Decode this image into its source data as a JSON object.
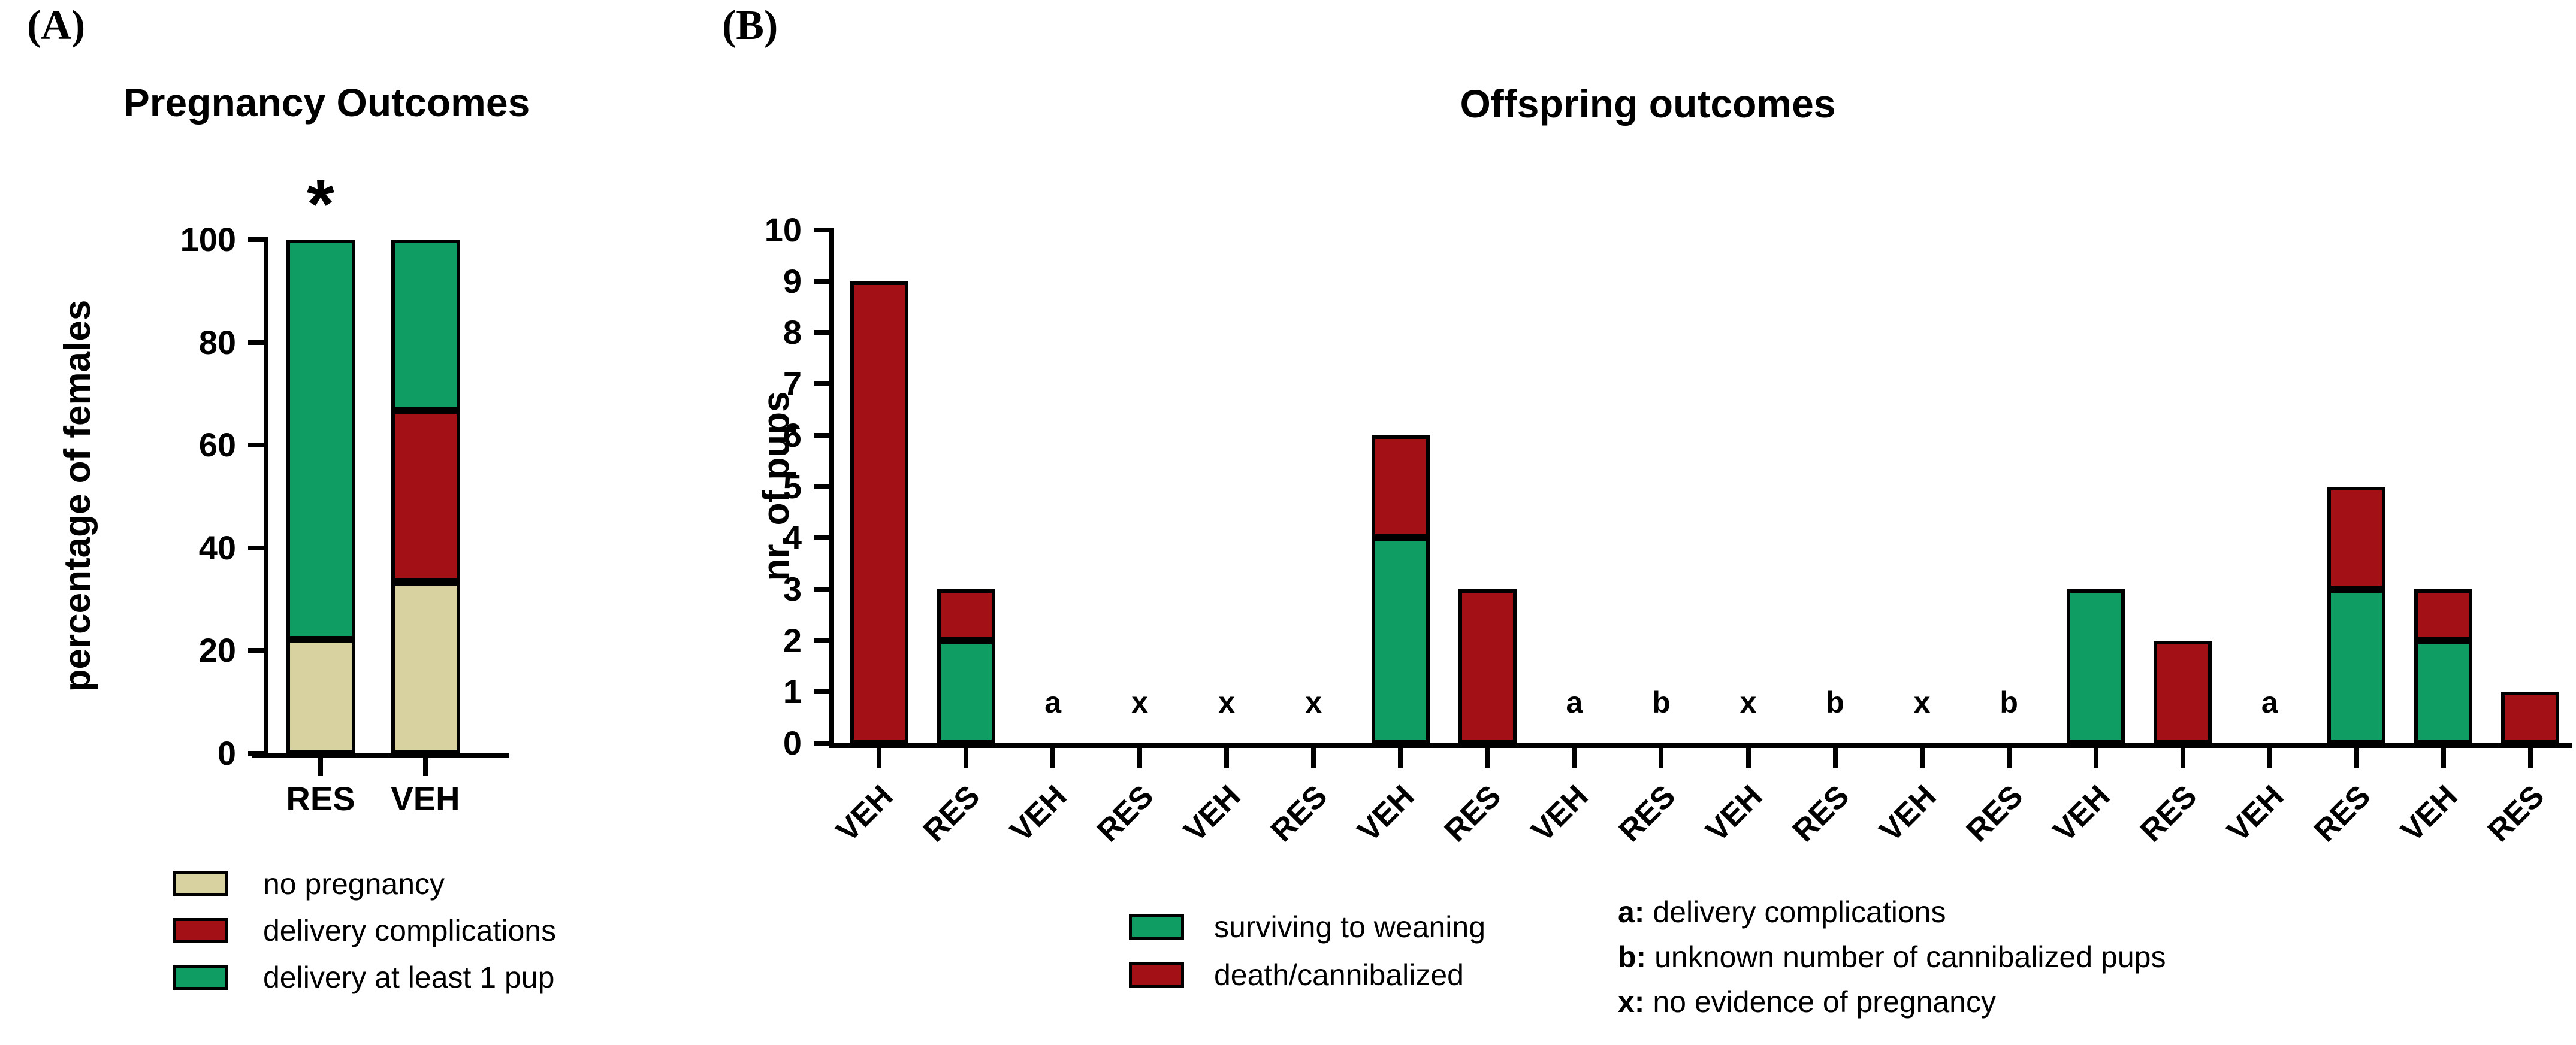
{
  "background": "#ffffff",
  "panels": {
    "a_tag": "(A)",
    "b_tag": "(B)"
  },
  "colors": {
    "no_pregnancy_tan": "#d8d2a0",
    "complication_red": "#a31016",
    "delivery_green": "#0f9d64",
    "axis_black": "#000000"
  },
  "chart_data": [
    {
      "type": "bar",
      "stacked": true,
      "title": "Pregnancy Outcomes",
      "xlabel": "",
      "ylabel": "percentage of females",
      "categories": [
        "RES",
        "VEH"
      ],
      "series": [
        {
          "name": "no pregnancy",
          "color": "#d8d2a0",
          "values": [
            22.2,
            33.3
          ]
        },
        {
          "name": "delivery complications",
          "color": "#a31016",
          "values": [
            0,
            33.4
          ]
        },
        {
          "name": "delivery at least 1 pup",
          "color": "#0f9d64",
          "values": [
            77.8,
            33.3
          ]
        }
      ],
      "ylim": [
        0,
        100
      ],
      "yticks": [
        0,
        20,
        40,
        60,
        80,
        100
      ],
      "grid": false,
      "legend_position": "bottom-left",
      "annotations": [
        {
          "text": "*",
          "category": "RES",
          "meaning": "significant"
        }
      ]
    },
    {
      "type": "bar",
      "stacked": true,
      "title": "Offspring outcomes",
      "xlabel": "",
      "ylabel": "nr. of pups",
      "categories": [
        "VEH",
        "RES",
        "VEH",
        "RES",
        "VEH",
        "RES",
        "VEH",
        "RES",
        "VEH",
        "RES",
        "VEH",
        "RES",
        "VEH",
        "RES",
        "VEH",
        "RES",
        "VEH",
        "RES",
        "VEH",
        "RES"
      ],
      "series": [
        {
          "name": "surviving to weaning",
          "color": "#0f9d64",
          "values": [
            0,
            2,
            0,
            0,
            0,
            0,
            4,
            0,
            0,
            0,
            0,
            0,
            0,
            0,
            3,
            0,
            0,
            3,
            2,
            0
          ]
        },
        {
          "name": "death/cannibalized",
          "color": "#a31016",
          "values": [
            9,
            1,
            0,
            0,
            0,
            0,
            2,
            3,
            0,
            0,
            0,
            0,
            0,
            0,
            0,
            2,
            0,
            2,
            1,
            1
          ]
        }
      ],
      "ylim": [
        0,
        10
      ],
      "yticks": [
        0,
        1,
        2,
        3,
        4,
        5,
        6,
        7,
        8,
        9,
        10
      ],
      "grid": false,
      "legend_position": "bottom",
      "markers": [
        {
          "index": 2,
          "symbol": "a"
        },
        {
          "index": 3,
          "symbol": "x"
        },
        {
          "index": 4,
          "symbol": "x"
        },
        {
          "index": 5,
          "symbol": "x"
        },
        {
          "index": 8,
          "symbol": "a"
        },
        {
          "index": 9,
          "symbol": "b"
        },
        {
          "index": 10,
          "symbol": "x"
        },
        {
          "index": 11,
          "symbol": "b"
        },
        {
          "index": 12,
          "symbol": "x"
        },
        {
          "index": 13,
          "symbol": "b"
        },
        {
          "index": 16,
          "symbol": "a"
        }
      ],
      "notes": [
        {
          "prefix": "a:",
          "text": " delivery complications"
        },
        {
          "prefix": "b:",
          "text": " unknown number of cannibalized pups"
        },
        {
          "prefix": "x:",
          "text": " no evidence of pregnancy"
        }
      ]
    }
  ]
}
